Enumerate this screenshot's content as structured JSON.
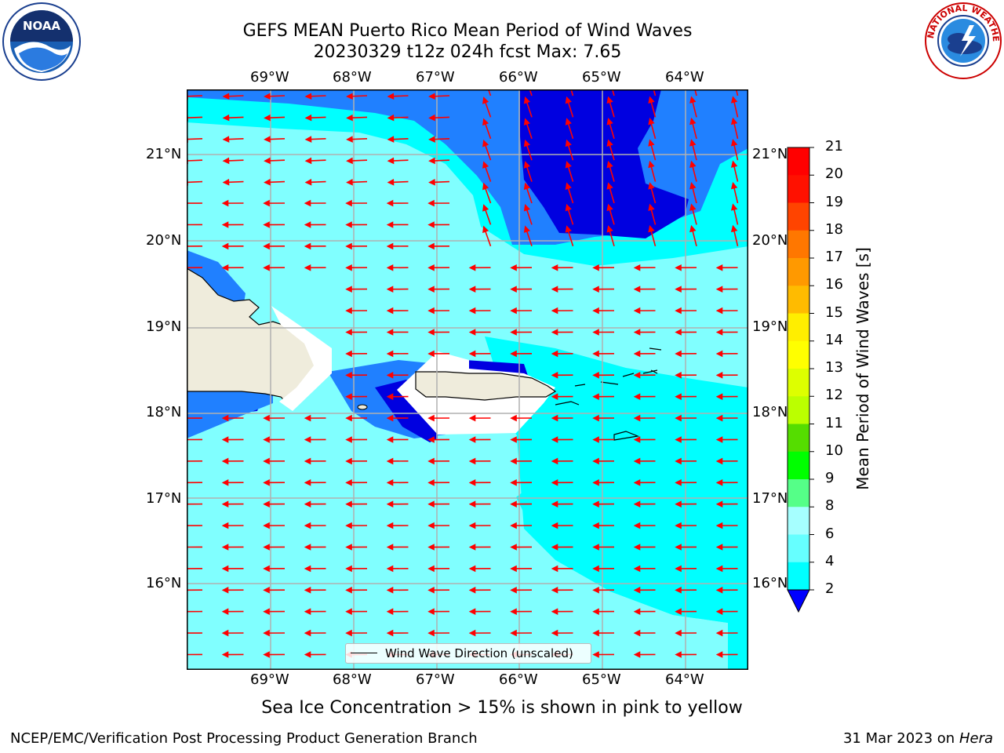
{
  "title": {
    "line1": "GEFS MEAN Puerto Rico Mean Period of Wind Waves",
    "line2": "20230329 t12z 024h fcst   Max: 7.65"
  },
  "map": {
    "lon_labels": [
      "69°W",
      "68°W",
      "67°W",
      "66°W",
      "65°W",
      "64°W"
    ],
    "lat_labels": [
      "21°N",
      "20°N",
      "19°N",
      "18°N",
      "17°N",
      "16°N"
    ],
    "legend_label": "Wind Wave Direction (unscaled)",
    "ocean_colors": {
      "lt_cyan": "#80ffff",
      "cyan": "#00ffff",
      "blue": "#2080ff",
      "dark_blue": "#0000e0",
      "land": "#efecdc",
      "grid": "#b0b0b0",
      "arrow": "#ff0000"
    }
  },
  "colorbar": {
    "label": "Mean Period of Wind Waves [s]",
    "ticks": [
      "2",
      "4",
      "6",
      "8",
      "9",
      "10",
      "11",
      "12",
      "13",
      "14",
      "15",
      "16",
      "17",
      "18",
      "19",
      "20",
      "21"
    ],
    "colors": [
      "#0000ff",
      "#0080ff",
      "#00ffff",
      "#66ffff",
      "#a6ffff",
      "#55ff88",
      "#00ff00",
      "#55dd00",
      "#bbff00",
      "#ddff00",
      "#ffff00",
      "#ffee00",
      "#ffbb00",
      "#ff9900",
      "#ff7700",
      "#ff4400",
      "#ff1100",
      "#ff0000"
    ]
  },
  "note": "Sea Ice Concentration > 15% is shown in pink to yellow",
  "footer": {
    "left": "NCEP/EMC/Verification Post Processing Product Generation Branch",
    "date": "31 Mar 2023 on",
    "machine": "Hera"
  },
  "logos": {
    "noaa": "NOAA",
    "nws": "NATIONAL WEATHER SERVICE"
  }
}
